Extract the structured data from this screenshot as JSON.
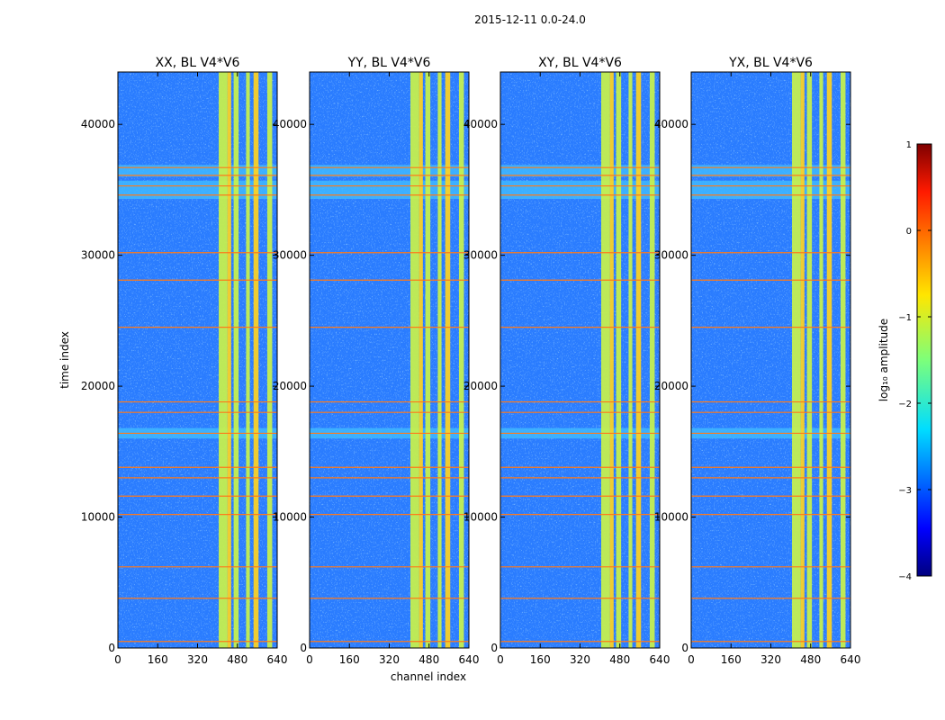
{
  "figure_title": "2015-12-11 0.0-24.0",
  "chart_data": {
    "type": "heatmap",
    "suptitle": "2015-12-11 0.0-24.0",
    "xlabel": "channel index",
    "ylabel": "time index",
    "xlim": [
      0,
      640
    ],
    "ylim": [
      0,
      44000
    ],
    "x_ticks": [
      "0",
      "160",
      "320",
      "480",
      "640"
    ],
    "y_ticks": [
      "0",
      "10000",
      "20000",
      "30000",
      "40000"
    ],
    "x_tick_values": [
      0,
      160,
      320,
      480,
      640
    ],
    "y_tick_values": [
      0,
      10000,
      20000,
      30000,
      40000
    ],
    "panels": [
      {
        "title": "XX, BL V4*V6",
        "polarization": "XX",
        "baseline": "V4*V6"
      },
      {
        "title": "YY, BL V4*V6",
        "polarization": "YY",
        "baseline": "V4*V6"
      },
      {
        "title": "XY, BL V4*V6",
        "polarization": "XY",
        "baseline": "V4*V6"
      },
      {
        "title": "YX, BL V4*V6",
        "polarization": "YX",
        "baseline": "V4*V6"
      }
    ],
    "colorbar": {
      "label": "log₁₀ amplitude",
      "range": [
        -4,
        1
      ],
      "ticks": [
        "1",
        "0",
        "−1",
        "−2",
        "−3",
        "−4"
      ],
      "tick_values": [
        1,
        0,
        -1,
        -2,
        -3,
        -4
      ],
      "colormap": "jet"
    },
    "bright_channel_bands": [
      {
        "from": 405,
        "to": 440
      },
      {
        "from": 440,
        "to": 455
      },
      {
        "from": 465,
        "to": 485
      },
      {
        "from": 515,
        "to": 530
      },
      {
        "from": 545,
        "to": 565
      },
      {
        "from": 600,
        "to": 620
      }
    ],
    "rfi_time_rows": [
      500,
      3800,
      6200,
      10200,
      11600,
      13000,
      13800,
      16400,
      18000,
      18800,
      24500,
      28100,
      30200,
      34600,
      35300,
      36100,
      36700
    ],
    "flagged_time_ranges": [
      [
        16000,
        16800
      ],
      [
        34300,
        35700
      ],
      [
        36000,
        36900
      ]
    ]
  }
}
